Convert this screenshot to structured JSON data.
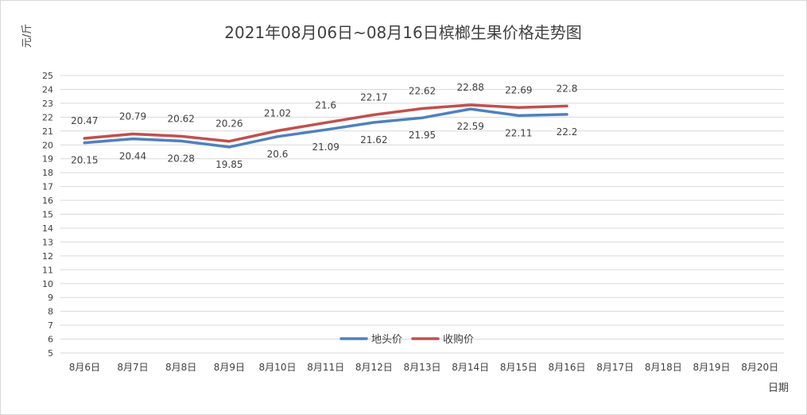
{
  "chart_data": {
    "type": "line",
    "title": "2021年08月06日~08月16日槟榔生果价格走势图",
    "ylabel": "元/斤",
    "xlabel": "日期",
    "ylim": [
      5,
      25
    ],
    "yticks": [
      5,
      6,
      7,
      8,
      9,
      10,
      11,
      12,
      13,
      14,
      15,
      16,
      17,
      18,
      19,
      20,
      21,
      22,
      23,
      24,
      25
    ],
    "categories": [
      "8月6日",
      "8月7日",
      "8月8日",
      "8月9日",
      "8月10日",
      "8月11日",
      "8月12日",
      "8月13日",
      "8月14日",
      "8月15日",
      "8月16日",
      "8月17日",
      "8月18日",
      "8月19日",
      "8月20日"
    ],
    "grid": true,
    "legend_position": "bottom-center",
    "series": [
      {
        "name": "地头价",
        "color": "#4f81bd",
        "values": [
          20.15,
          20.44,
          20.28,
          19.85,
          20.6,
          21.09,
          21.62,
          21.95,
          22.59,
          22.11,
          22.2,
          null,
          null,
          null,
          null
        ],
        "label_position": "below"
      },
      {
        "name": "收购价",
        "color": "#c0504d",
        "values": [
          20.47,
          20.79,
          20.62,
          20.26,
          21.02,
          21.6,
          22.17,
          22.62,
          22.88,
          22.69,
          22.8,
          null,
          null,
          null,
          null
        ],
        "label_position": "above"
      }
    ]
  }
}
